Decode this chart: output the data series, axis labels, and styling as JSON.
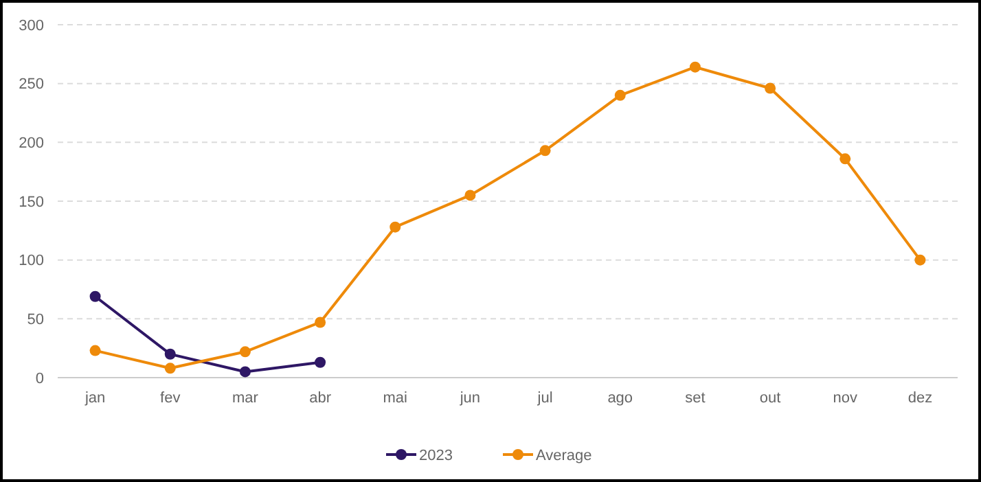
{
  "chart_data": {
    "type": "line",
    "categories": [
      "jan",
      "fev",
      "mar",
      "abr",
      "mai",
      "jun",
      "jul",
      "ago",
      "set",
      "out",
      "nov",
      "dez"
    ],
    "series": [
      {
        "name": "2023",
        "color": "#2e1765",
        "values": [
          69,
          20,
          5,
          13,
          null,
          null,
          null,
          null,
          null,
          null,
          null,
          null
        ]
      },
      {
        "name": "Average",
        "color": "#ee8a0a",
        "values": [
          23,
          8,
          22,
          47,
          128,
          155,
          193,
          240,
          264,
          246,
          186,
          100
        ]
      }
    ],
    "ylim": [
      0,
      300
    ],
    "yticks": [
      0,
      50,
      100,
      150,
      200,
      250,
      300
    ],
    "grid": "y",
    "legend": "bottom",
    "marker": "circle",
    "line_style": "solid"
  }
}
